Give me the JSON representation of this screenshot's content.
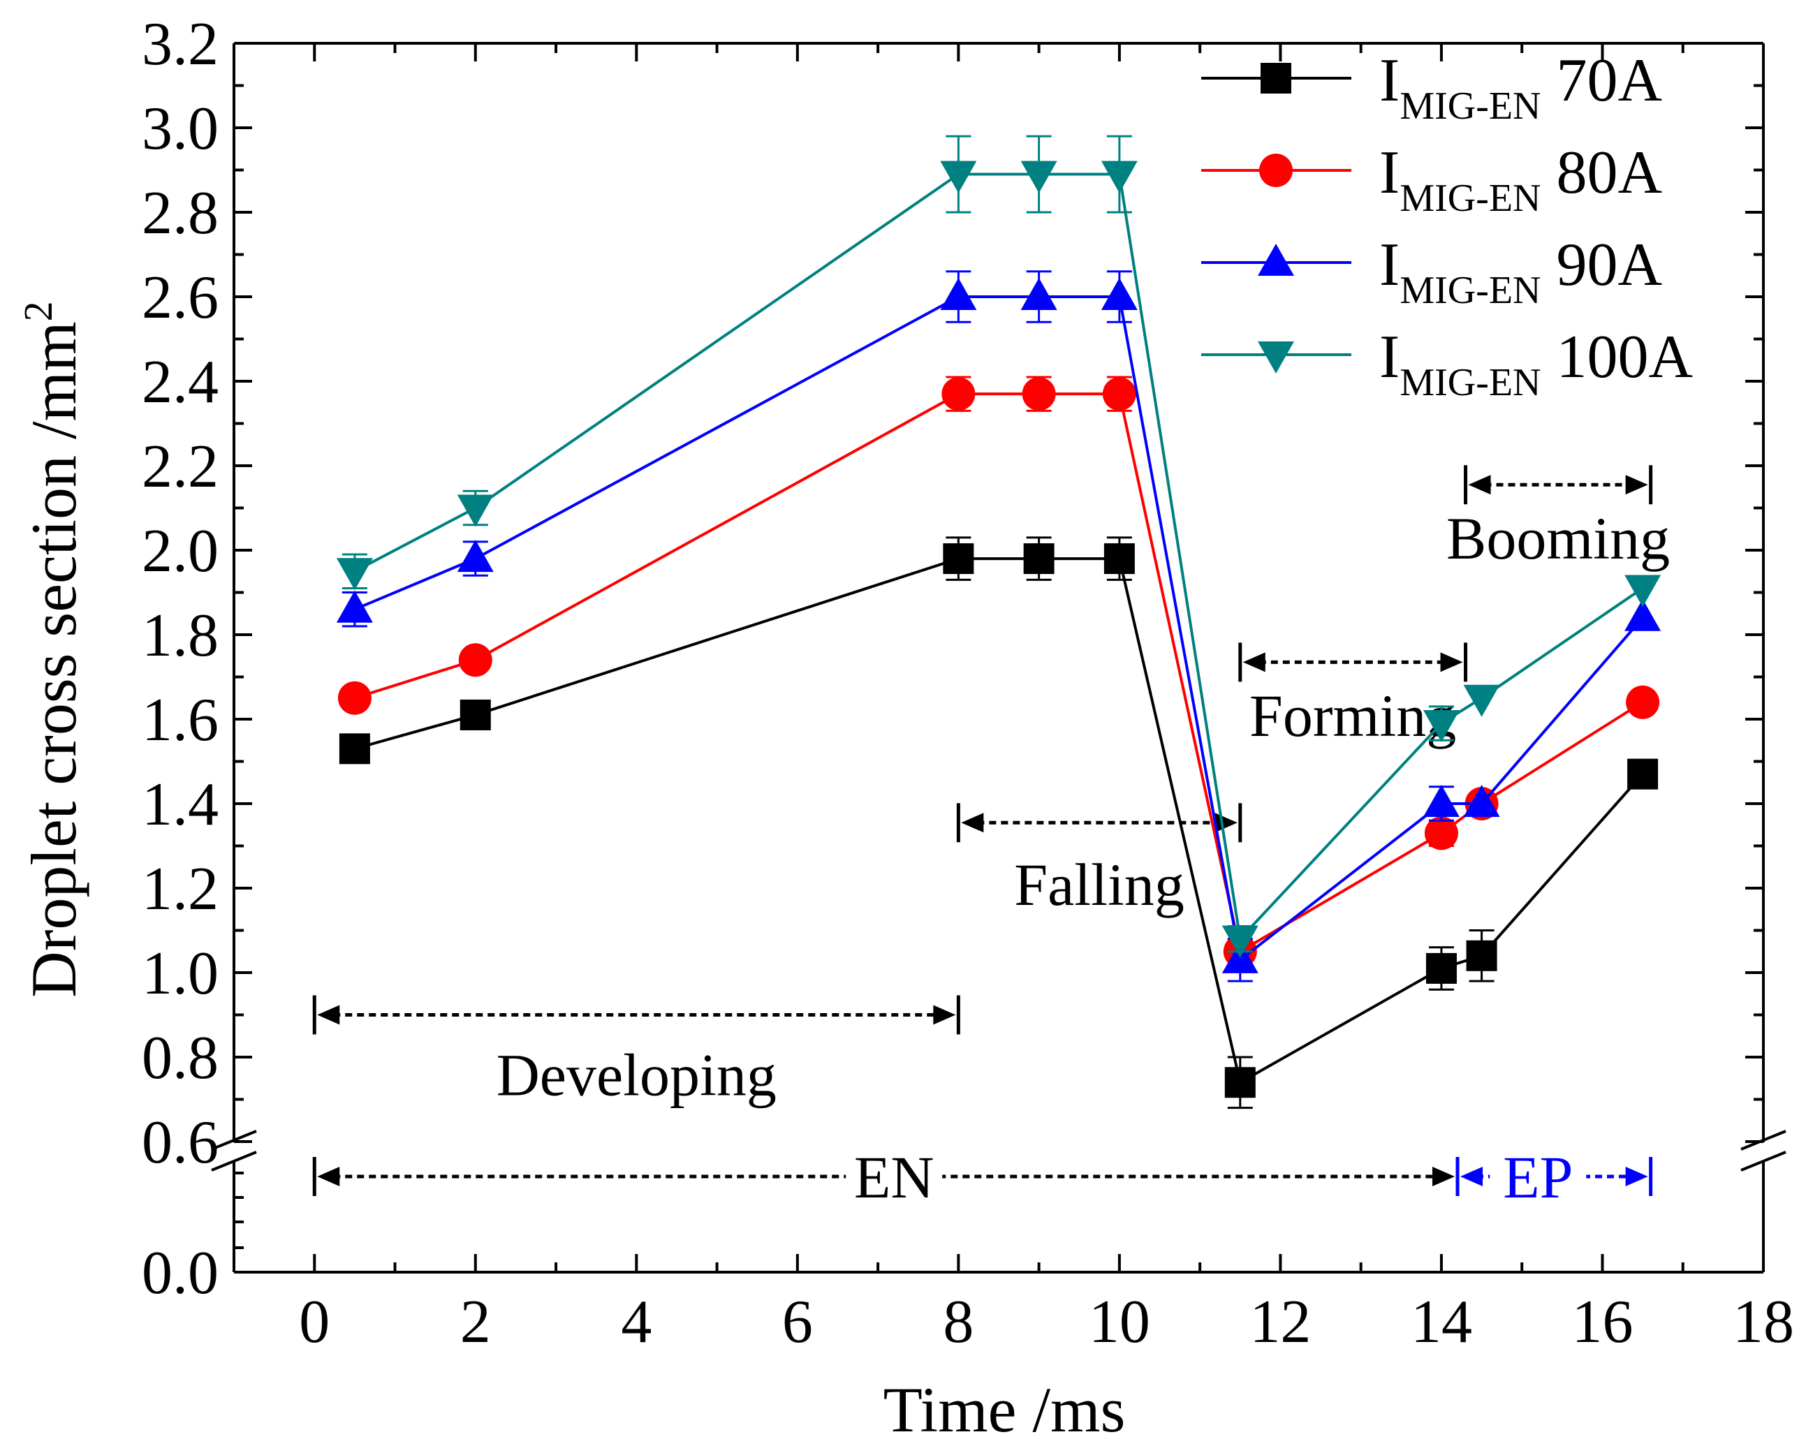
{
  "chart_data": {
    "type": "line",
    "title": "",
    "xlabel": "Time /ms",
    "ylabel": "Droplet cross section /mm",
    "ylabel_superscript": "2",
    "xlim": [
      -1,
      18
    ],
    "x_ticks": [
      0,
      2,
      4,
      6,
      8,
      10,
      12,
      14,
      16,
      18
    ],
    "ylim_upper": [
      0.6,
      3.2
    ],
    "y_ticks_upper": [
      0.6,
      0.8,
      1.0,
      1.2,
      1.4,
      1.6,
      1.8,
      2.0,
      2.2,
      2.4,
      2.6,
      2.8,
      3.0,
      3.2
    ],
    "y_ticks_lower": [
      0.0
    ],
    "axis_break": true,
    "x": [
      0.5,
      2,
      8,
      9,
      10,
      11.5,
      14,
      14.5,
      16.5
    ],
    "legend_position": "top-right",
    "series": [
      {
        "name": "70A",
        "legend_main": "I",
        "legend_sub": "MIG-EN",
        "legend_value": "70A",
        "color": "#000000",
        "marker": "square",
        "values": [
          1.53,
          1.61,
          1.98,
          1.98,
          1.98,
          0.74,
          1.01,
          1.04,
          1.47
        ],
        "errors": [
          0,
          0,
          0.05,
          0.05,
          0.05,
          0.06,
          0.05,
          0.06,
          0
        ]
      },
      {
        "name": "80A",
        "legend_main": "I",
        "legend_sub": "MIG-EN",
        "legend_value": "80A",
        "color": "#ff0000",
        "marker": "circle",
        "values": [
          1.65,
          1.74,
          2.37,
          2.37,
          2.37,
          1.05,
          1.33,
          1.4,
          1.64
        ],
        "errors": [
          0,
          0,
          0.04,
          0.04,
          0.04,
          0,
          0.03,
          0,
          0
        ]
      },
      {
        "name": "90A",
        "legend_main": "I",
        "legend_sub": "MIG-EN",
        "legend_value": "90A",
        "color": "#0000ff",
        "marker": "triangle-up",
        "values": [
          1.86,
          1.98,
          2.6,
          2.6,
          2.6,
          1.03,
          1.4,
          1.4,
          1.84
        ],
        "errors": [
          0.04,
          0.04,
          0.06,
          0.06,
          0.06,
          0.05,
          0.04,
          0,
          0
        ]
      },
      {
        "name": "100A",
        "legend_main": "I",
        "legend_sub": "MIG-EN",
        "legend_value": "100A",
        "color": "#008080",
        "marker": "triangle-down",
        "values": [
          1.95,
          2.1,
          2.89,
          2.89,
          2.89,
          1.08,
          1.59,
          1.65,
          1.91
        ],
        "errors": [
          0.04,
          0.04,
          0.09,
          0.09,
          0.09,
          0.03,
          0.04,
          0,
          0
        ]
      }
    ],
    "annotations": [
      {
        "label": "Developing",
        "x_start": 0,
        "x_end": 8,
        "level": "upper",
        "y": 0.9,
        "text_y": 0.71,
        "color": "#000000"
      },
      {
        "label": "Falling",
        "x_start": 8,
        "x_end": 11.5,
        "level": "upper",
        "y": 1.355,
        "text_y": 1.16,
        "color": "#000000"
      },
      {
        "label": "Forming",
        "x_start": 11.5,
        "x_end": 14.3,
        "level": "upper",
        "y": 1.735,
        "text_y": 1.56,
        "color": "#000000"
      },
      {
        "label": "Booming",
        "x_start": 14.3,
        "x_end": 16.6,
        "level": "upper",
        "y": 2.155,
        "text_y": 1.98,
        "color": "#000000"
      },
      {
        "label": "EN",
        "x_start": 0,
        "x_end": 14.2,
        "level": "lower",
        "text_x": 7.2,
        "color": "#000000"
      },
      {
        "label": "EP",
        "x_start": 14.2,
        "x_end": 16.6,
        "level": "lower",
        "text_x": 15.2,
        "color": "#0000ff"
      }
    ]
  }
}
